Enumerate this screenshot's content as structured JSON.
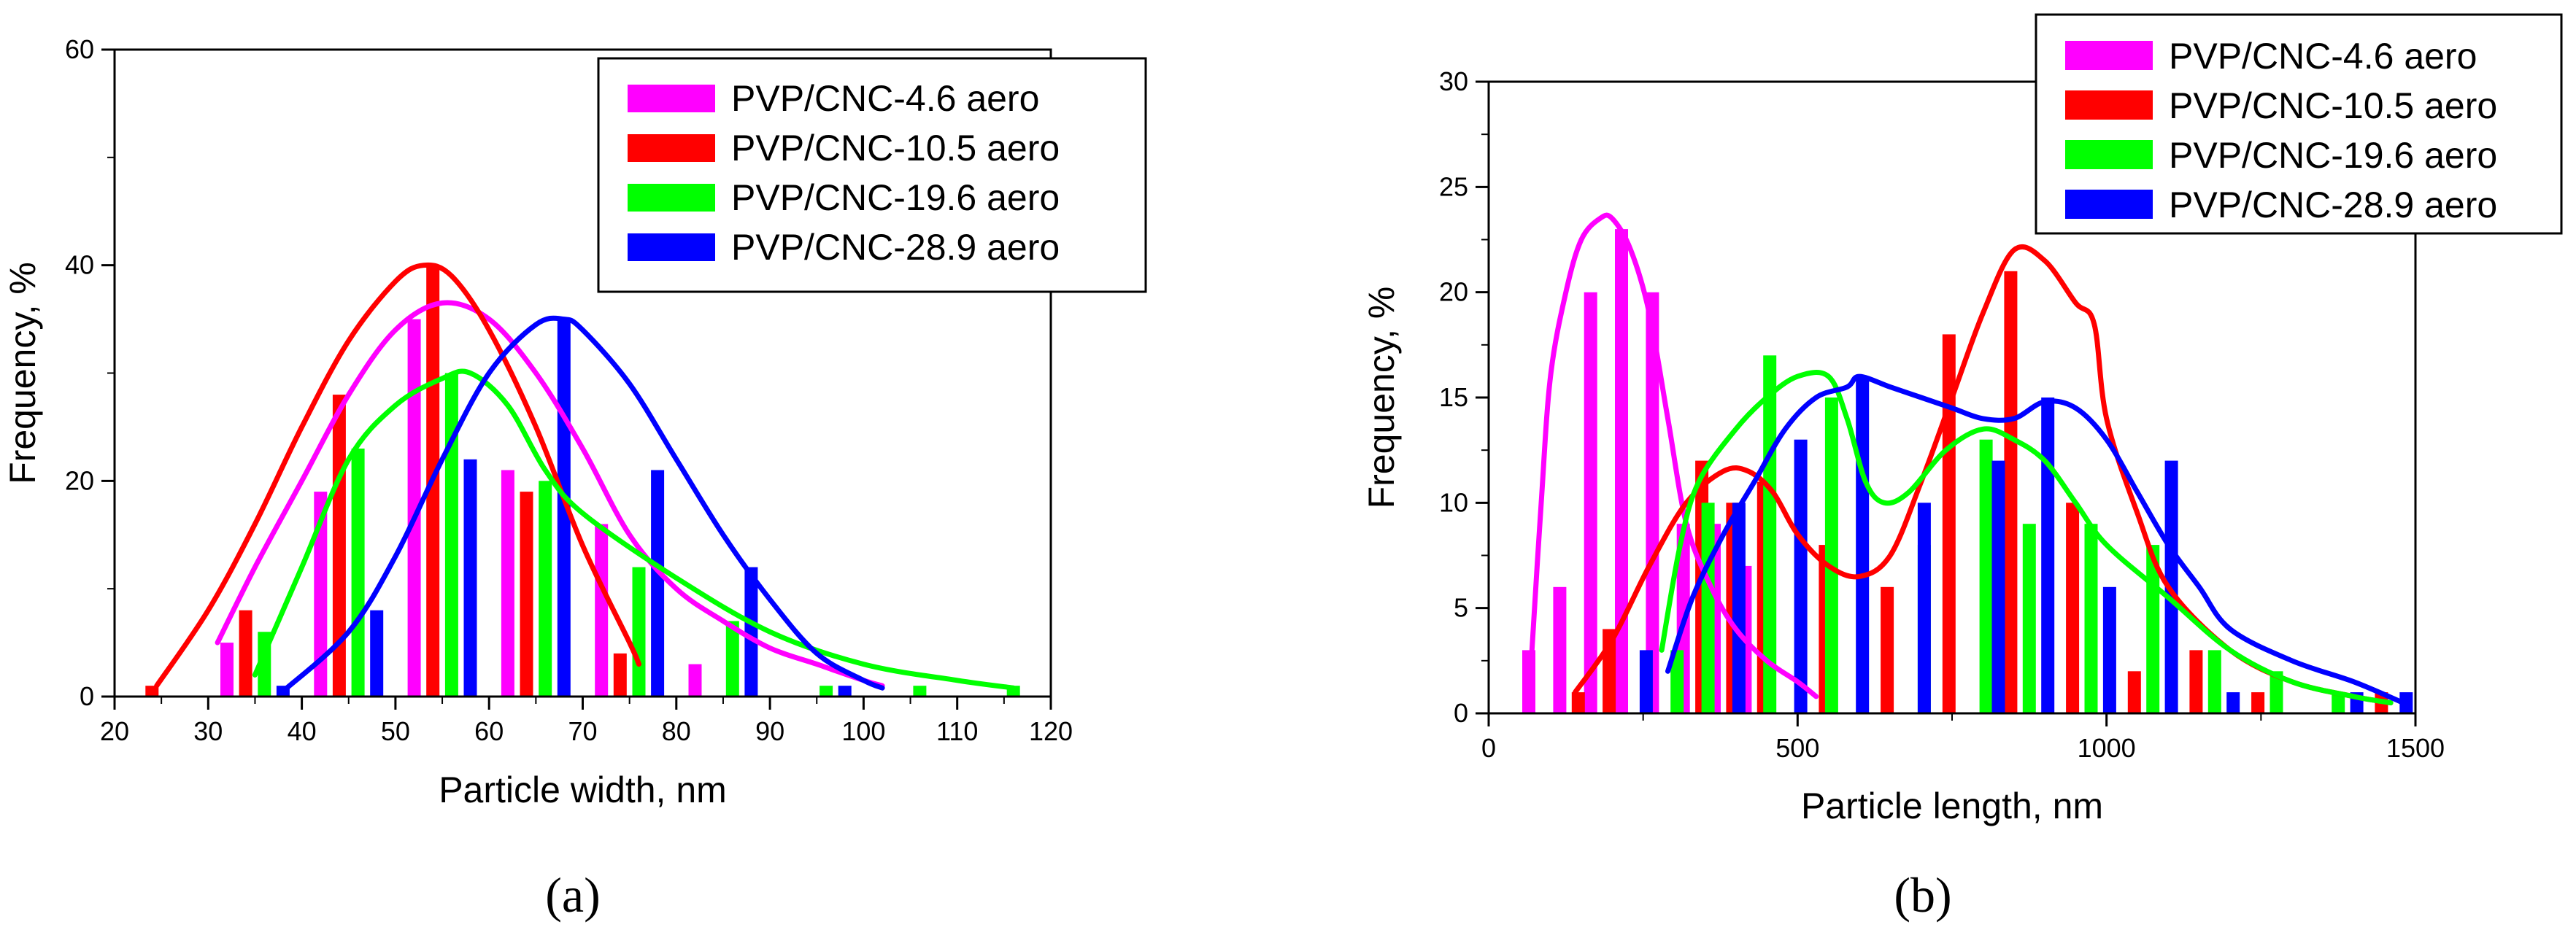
{
  "chart_data": [
    {
      "type": "bar",
      "panel": "(a)",
      "xlabel": "Particle width, nm",
      "ylabel": "Frequency, %",
      "xlim": [
        20,
        120
      ],
      "ylim": [
        0,
        60
      ],
      "xticks": [
        20,
        30,
        40,
        50,
        60,
        70,
        80,
        90,
        100,
        110,
        120
      ],
      "yticks": [
        0,
        20,
        40,
        60
      ],
      "legend_position": "top-right",
      "series": [
        {
          "name": "PVP/CNC-4.6 aero",
          "color": "#ff00ff",
          "bars": [
            [
              32,
              5
            ],
            [
              42,
              19
            ],
            [
              52,
              35
            ],
            [
              62,
              21
            ],
            [
              72,
              16
            ],
            [
              82,
              3
            ]
          ],
          "fit": [
            [
              31,
              5
            ],
            [
              35,
              12
            ],
            [
              40,
              20
            ],
            [
              45,
              28
            ],
            [
              50,
              34
            ],
            [
              55,
              36.5
            ],
            [
              60,
              35
            ],
            [
              65,
              30
            ],
            [
              70,
              23
            ],
            [
              75,
              15
            ],
            [
              80,
              10
            ],
            [
              85,
              7
            ],
            [
              90,
              4.5
            ],
            [
              95,
              3
            ],
            [
              100,
              1.5
            ],
            [
              102,
              1
            ]
          ]
        },
        {
          "name": "PVP/CNC-10.5 aero",
          "color": "#ff0000",
          "bars": [
            [
              24,
              1
            ],
            [
              34,
              8
            ],
            [
              44,
              28
            ],
            [
              54,
              40
            ],
            [
              64,
              19
            ],
            [
              74,
              4
            ]
          ],
          "fit": [
            [
              24.5,
              1
            ],
            [
              30,
              8
            ],
            [
              35,
              16
            ],
            [
              40,
              25
            ],
            [
              45,
              33
            ],
            [
              50,
              38.5
            ],
            [
              53,
              40
            ],
            [
              56,
              39
            ],
            [
              60,
              34
            ],
            [
              65,
              25
            ],
            [
              70,
              14
            ],
            [
              75,
              5
            ],
            [
              76,
              3
            ]
          ]
        },
        {
          "name": "PVP/CNC-19.6 aero",
          "color": "#00ff00",
          "bars": [
            [
              36,
              6
            ],
            [
              46,
              23
            ],
            [
              56,
              30
            ],
            [
              66,
              20
            ],
            [
              76,
              12
            ],
            [
              86,
              7
            ],
            [
              96,
              1
            ],
            [
              106,
              1
            ],
            [
              116,
              1
            ]
          ],
          "fit": [
            [
              35,
              2
            ],
            [
              40,
              12
            ],
            [
              45,
              22
            ],
            [
              50,
              27
            ],
            [
              55,
              29.5
            ],
            [
              58,
              30
            ],
            [
              62,
              27
            ],
            [
              66,
              21
            ],
            [
              70,
              17
            ],
            [
              80,
              11
            ],
            [
              90,
              6
            ],
            [
              100,
              3
            ],
            [
              110,
              1.5
            ],
            [
              116,
              0.8
            ]
          ]
        },
        {
          "name": "PVP/CNC-28.9 aero",
          "color": "#0000ff",
          "bars": [
            [
              38,
              1
            ],
            [
              48,
              8
            ],
            [
              58,
              22
            ],
            [
              68,
              35
            ],
            [
              78,
              21
            ],
            [
              88,
              12
            ],
            [
              98,
              1
            ]
          ],
          "fit": [
            [
              38,
              0.5
            ],
            [
              45,
              6
            ],
            [
              50,
              13
            ],
            [
              55,
              22
            ],
            [
              60,
              30
            ],
            [
              65,
              34.5
            ],
            [
              68,
              35
            ],
            [
              70,
              34
            ],
            [
              75,
              29
            ],
            [
              80,
              22
            ],
            [
              85,
              15
            ],
            [
              90,
              9
            ],
            [
              95,
              4
            ],
            [
              100,
              1.5
            ],
            [
              102,
              0.8
            ]
          ]
        }
      ]
    },
    {
      "type": "bar",
      "panel": "(b)",
      "xlabel": "Particle length, nm",
      "ylabel": "Frequency, %",
      "xlim": [
        0,
        1500
      ],
      "ylim": [
        0,
        30
      ],
      "xticks": [
        0,
        500,
        1000,
        1500
      ],
      "yticks": [
        0,
        5,
        10,
        15,
        20,
        25,
        30
      ],
      "legend_position": "top-right",
      "series": [
        {
          "name": "PVP/CNC-4.6 aero",
          "color": "#ff00ff",
          "bars": [
            [
              65,
              3
            ],
            [
              115,
              6
            ],
            [
              165,
              20
            ],
            [
              215,
              23
            ],
            [
              265,
              20
            ],
            [
              315,
              9
            ],
            [
              365,
              9
            ],
            [
              415,
              7
            ]
          ],
          "fit": [
            [
              70,
              3
            ],
            [
              85,
              10
            ],
            [
              100,
              16
            ],
            [
              125,
              20
            ],
            [
              150,
              22.5
            ],
            [
              180,
              23.5
            ],
            [
              200,
              23.5
            ],
            [
              230,
              22
            ],
            [
              260,
              19
            ],
            [
              290,
              14
            ],
            [
              320,
              9
            ],
            [
              360,
              6
            ],
            [
              400,
              4
            ],
            [
              450,
              2.5
            ],
            [
              500,
              1.5
            ],
            [
              530,
              0.8
            ]
          ]
        },
        {
          "name": "PVP/CNC-10.5 aero",
          "color": "#ff0000",
          "bars": [
            [
              145,
              1
            ],
            [
              195,
              4
            ],
            [
              345,
              12
            ],
            [
              395,
              10
            ],
            [
              445,
              11
            ],
            [
              545,
              8
            ],
            [
              645,
              6
            ],
            [
              745,
              18
            ],
            [
              845,
              21
            ],
            [
              945,
              10
            ],
            [
              1045,
              2
            ],
            [
              1145,
              3
            ],
            [
              1245,
              1
            ],
            [
              1445,
              1
            ]
          ],
          "fit": [
            [
              140,
              1
            ],
            [
              200,
              3.5
            ],
            [
              260,
              7
            ],
            [
              320,
              10
            ],
            [
              380,
              11.5
            ],
            [
              420,
              11.5
            ],
            [
              460,
              10.5
            ],
            [
              500,
              8.5
            ],
            [
              550,
              7
            ],
            [
              600,
              6.5
            ],
            [
              650,
              7.5
            ],
            [
              700,
              11
            ],
            [
              750,
              15
            ],
            [
              800,
              19
            ],
            [
              850,
              22
            ],
            [
              900,
              21.5
            ],
            [
              950,
              19.5
            ],
            [
              980,
              18.5
            ],
            [
              1000,
              14
            ],
            [
              1050,
              9.5
            ],
            [
              1100,
              6
            ],
            [
              1200,
              3
            ],
            [
              1300,
              1.5
            ],
            [
              1400,
              0.8
            ],
            [
              1460,
              0.5
            ]
          ]
        },
        {
          "name": "PVP/CNC-19.6 aero",
          "color": "#00ff00",
          "bars": [
            [
              305,
              3
            ],
            [
              355,
              10
            ],
            [
              455,
              17
            ],
            [
              555,
              15
            ],
            [
              705,
              8
            ],
            [
              805,
              13
            ],
            [
              875,
              9
            ],
            [
              975,
              9
            ],
            [
              1075,
              8
            ],
            [
              1175,
              3
            ],
            [
              1275,
              2
            ],
            [
              1375,
              1
            ]
          ],
          "fit": [
            [
              280,
              3
            ],
            [
              310,
              8
            ],
            [
              340,
              11
            ],
            [
              400,
              13.5
            ],
            [
              450,
              15
            ],
            [
              500,
              16
            ],
            [
              550,
              16
            ],
            [
              580,
              14
            ],
            [
              610,
              11
            ],
            [
              640,
              10
            ],
            [
              680,
              10.5
            ],
            [
              740,
              12.5
            ],
            [
              800,
              13.5
            ],
            [
              850,
              13
            ],
            [
              900,
              12
            ],
            [
              950,
              10
            ],
            [
              1000,
              8
            ],
            [
              1100,
              5.5
            ],
            [
              1200,
              3
            ],
            [
              1300,
              1.5
            ],
            [
              1400,
              0.8
            ],
            [
              1460,
              0.5
            ]
          ]
        },
        {
          "name": "PVP/CNC-28.9 aero",
          "color": "#0000ff",
          "bars": [
            [
              255,
              3
            ],
            [
              405,
              10
            ],
            [
              505,
              13
            ],
            [
              605,
              16
            ],
            [
              705,
              10
            ],
            [
              825,
              12
            ],
            [
              905,
              15
            ],
            [
              1005,
              6
            ],
            [
              1105,
              12
            ],
            [
              1205,
              1
            ],
            [
              1405,
              1
            ],
            [
              1485,
              1
            ]
          ],
          "fit": [
            [
              290,
              2
            ],
            [
              330,
              5.5
            ],
            [
              380,
              8.5
            ],
            [
              430,
              11
            ],
            [
              480,
              13.5
            ],
            [
              530,
              15
            ],
            [
              580,
              15.5
            ],
            [
              600,
              16
            ],
            [
              650,
              15.5
            ],
            [
              700,
              15
            ],
            [
              750,
              14.5
            ],
            [
              800,
              14
            ],
            [
              850,
              14
            ],
            [
              900,
              14.8
            ],
            [
              950,
              14.5
            ],
            [
              1000,
              13
            ],
            [
              1050,
              10.5
            ],
            [
              1100,
              8
            ],
            [
              1150,
              6
            ],
            [
              1200,
              4
            ],
            [
              1300,
              2.5
            ],
            [
              1400,
              1.5
            ],
            [
              1480,
              0.5
            ]
          ]
        }
      ]
    }
  ]
}
